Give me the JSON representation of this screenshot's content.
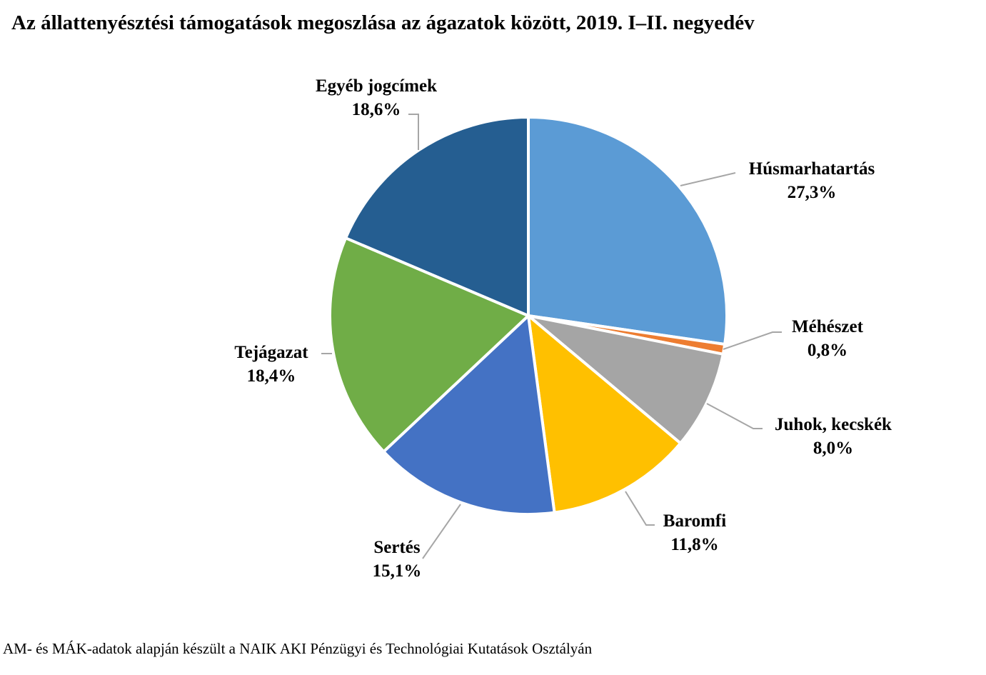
{
  "chart_data": {
    "type": "pie",
    "title": "Az állattenyésztési támogatások megoszlása az ágazatok között, 2019. I–II. negyedév",
    "start": "top",
    "direction": "clockwise",
    "slices": [
      {
        "label": "Húsmarhatartás",
        "value": 27.3,
        "value_label": "27,3%",
        "color": "#5B9BD5"
      },
      {
        "label": "Méhészet",
        "value": 0.8,
        "value_label": "0,8%",
        "color": "#ED7D31"
      },
      {
        "label": "Juhok, kecskék",
        "value": 8.0,
        "value_label": "8,0%",
        "color": "#A5A5A5"
      },
      {
        "label": "Baromfi",
        "value": 11.8,
        "value_label": "11,8%",
        "color": "#FFC000"
      },
      {
        "label": "Sertés",
        "value": 15.1,
        "value_label": "15,1%",
        "color": "#4472C4"
      },
      {
        "label": "Tejágazat",
        "value": 18.4,
        "value_label": "18,4%",
        "color": "#70AD47"
      },
      {
        "label": "Egyéb jogcímek",
        "value": 18.6,
        "value_label": "18,6%",
        "color": "#255E91"
      }
    ]
  },
  "source": "AM- és MÁK-adatok alapján készült a NAIK AKI Pénzügyi és Technológiai Kutatások Osztályán"
}
